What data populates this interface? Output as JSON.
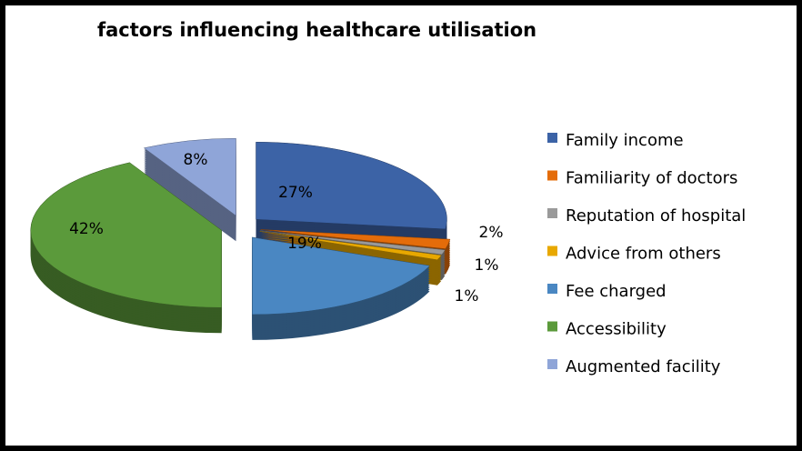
{
  "chart_data": {
    "type": "pie",
    "title": "factors influencing healthcare utilisation",
    "categories": [
      "Family income",
      "Familiarity of doctors",
      "Reputation of hospital",
      "Advice from others",
      "Fee charged",
      "Accessibility",
      "Augmented facility"
    ],
    "values": [
      27,
      2,
      1,
      1,
      19,
      42,
      8
    ],
    "value_labels": [
      "27%",
      "2%",
      "1%",
      "1%",
      "19%",
      "42%",
      "8%"
    ],
    "colors": [
      "#3c63a6",
      "#e46c0a",
      "#9a9a9a",
      "#e8a800",
      "#4a87c2",
      "#5b9a3b",
      "#8fa5d8"
    ],
    "legend": "right"
  }
}
